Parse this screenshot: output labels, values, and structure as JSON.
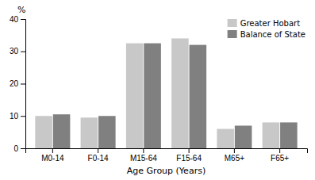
{
  "chart_data": {
    "type": "bar",
    "categories": [
      "M0-14",
      "F0-14",
      "M15-64",
      "F15-64",
      "M65+",
      "F65+"
    ],
    "series": [
      {
        "name": "Greater Hobart",
        "color": "#c8c8c8",
        "values": [
          10.0,
          9.5,
          32.5,
          34.0,
          6.0,
          8.0
        ]
      },
      {
        "name": "Balance of State",
        "color": "#808080",
        "values": [
          10.5,
          10.0,
          32.5,
          32.0,
          7.0,
          8.0
        ]
      }
    ],
    "xlabel": "Age Group (Years)",
    "ylabel": "%",
    "ylim": [
      0,
      40
    ],
    "yticks": [
      0,
      10,
      20,
      30,
      40
    ],
    "grid": false,
    "legend": "upper right"
  }
}
